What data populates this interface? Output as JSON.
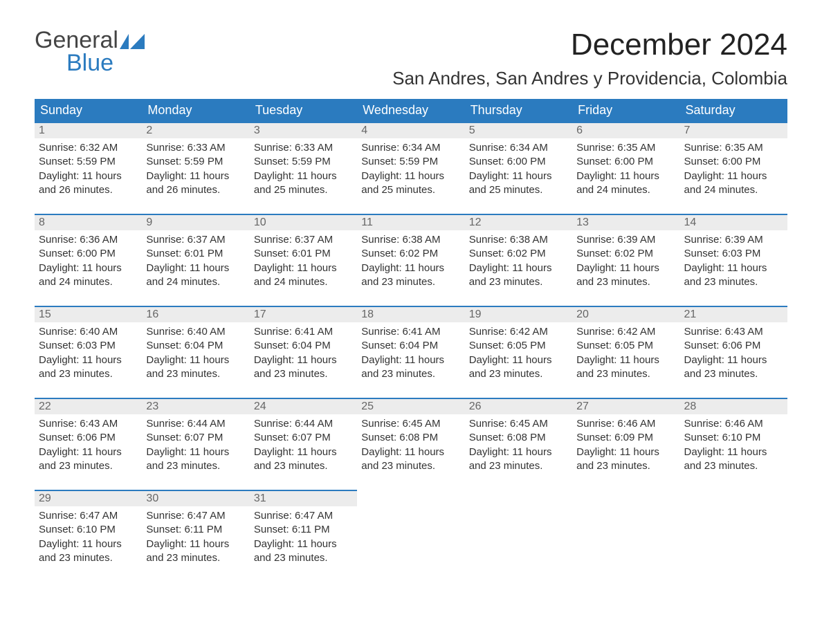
{
  "logo": {
    "text_general": "General",
    "text_blue": "Blue",
    "icon_color": "#2b7bbf"
  },
  "title": {
    "month": "December 2024",
    "location": "San Andres, San Andres y Providencia, Colombia"
  },
  "style": {
    "header_bg": "#2b7bbf",
    "header_text": "#ffffff",
    "daynum_bg": "#ececec",
    "daynum_border_top": "#2b7bbf",
    "body_text": "#333333",
    "daynum_text": "#666666",
    "font_family": "Arial, Helvetica, sans-serif",
    "month_fontsize": 44,
    "location_fontsize": 26,
    "dayhdr_fontsize": 18,
    "detail_fontsize": 15
  },
  "day_headers": [
    "Sunday",
    "Monday",
    "Tuesday",
    "Wednesday",
    "Thursday",
    "Friday",
    "Saturday"
  ],
  "weeks": [
    [
      {
        "day": "1",
        "sunrise": "Sunrise: 6:32 AM",
        "sunset": "Sunset: 5:59 PM",
        "daylight1": "Daylight: 11 hours",
        "daylight2": "and 26 minutes."
      },
      {
        "day": "2",
        "sunrise": "Sunrise: 6:33 AM",
        "sunset": "Sunset: 5:59 PM",
        "daylight1": "Daylight: 11 hours",
        "daylight2": "and 26 minutes."
      },
      {
        "day": "3",
        "sunrise": "Sunrise: 6:33 AM",
        "sunset": "Sunset: 5:59 PM",
        "daylight1": "Daylight: 11 hours",
        "daylight2": "and 25 minutes."
      },
      {
        "day": "4",
        "sunrise": "Sunrise: 6:34 AM",
        "sunset": "Sunset: 5:59 PM",
        "daylight1": "Daylight: 11 hours",
        "daylight2": "and 25 minutes."
      },
      {
        "day": "5",
        "sunrise": "Sunrise: 6:34 AM",
        "sunset": "Sunset: 6:00 PM",
        "daylight1": "Daylight: 11 hours",
        "daylight2": "and 25 minutes."
      },
      {
        "day": "6",
        "sunrise": "Sunrise: 6:35 AM",
        "sunset": "Sunset: 6:00 PM",
        "daylight1": "Daylight: 11 hours",
        "daylight2": "and 24 minutes."
      },
      {
        "day": "7",
        "sunrise": "Sunrise: 6:35 AM",
        "sunset": "Sunset: 6:00 PM",
        "daylight1": "Daylight: 11 hours",
        "daylight2": "and 24 minutes."
      }
    ],
    [
      {
        "day": "8",
        "sunrise": "Sunrise: 6:36 AM",
        "sunset": "Sunset: 6:00 PM",
        "daylight1": "Daylight: 11 hours",
        "daylight2": "and 24 minutes."
      },
      {
        "day": "9",
        "sunrise": "Sunrise: 6:37 AM",
        "sunset": "Sunset: 6:01 PM",
        "daylight1": "Daylight: 11 hours",
        "daylight2": "and 24 minutes."
      },
      {
        "day": "10",
        "sunrise": "Sunrise: 6:37 AM",
        "sunset": "Sunset: 6:01 PM",
        "daylight1": "Daylight: 11 hours",
        "daylight2": "and 24 minutes."
      },
      {
        "day": "11",
        "sunrise": "Sunrise: 6:38 AM",
        "sunset": "Sunset: 6:02 PM",
        "daylight1": "Daylight: 11 hours",
        "daylight2": "and 23 minutes."
      },
      {
        "day": "12",
        "sunrise": "Sunrise: 6:38 AM",
        "sunset": "Sunset: 6:02 PM",
        "daylight1": "Daylight: 11 hours",
        "daylight2": "and 23 minutes."
      },
      {
        "day": "13",
        "sunrise": "Sunrise: 6:39 AM",
        "sunset": "Sunset: 6:02 PM",
        "daylight1": "Daylight: 11 hours",
        "daylight2": "and 23 minutes."
      },
      {
        "day": "14",
        "sunrise": "Sunrise: 6:39 AM",
        "sunset": "Sunset: 6:03 PM",
        "daylight1": "Daylight: 11 hours",
        "daylight2": "and 23 minutes."
      }
    ],
    [
      {
        "day": "15",
        "sunrise": "Sunrise: 6:40 AM",
        "sunset": "Sunset: 6:03 PM",
        "daylight1": "Daylight: 11 hours",
        "daylight2": "and 23 minutes."
      },
      {
        "day": "16",
        "sunrise": "Sunrise: 6:40 AM",
        "sunset": "Sunset: 6:04 PM",
        "daylight1": "Daylight: 11 hours",
        "daylight2": "and 23 minutes."
      },
      {
        "day": "17",
        "sunrise": "Sunrise: 6:41 AM",
        "sunset": "Sunset: 6:04 PM",
        "daylight1": "Daylight: 11 hours",
        "daylight2": "and 23 minutes."
      },
      {
        "day": "18",
        "sunrise": "Sunrise: 6:41 AM",
        "sunset": "Sunset: 6:04 PM",
        "daylight1": "Daylight: 11 hours",
        "daylight2": "and 23 minutes."
      },
      {
        "day": "19",
        "sunrise": "Sunrise: 6:42 AM",
        "sunset": "Sunset: 6:05 PM",
        "daylight1": "Daylight: 11 hours",
        "daylight2": "and 23 minutes."
      },
      {
        "day": "20",
        "sunrise": "Sunrise: 6:42 AM",
        "sunset": "Sunset: 6:05 PM",
        "daylight1": "Daylight: 11 hours",
        "daylight2": "and 23 minutes."
      },
      {
        "day": "21",
        "sunrise": "Sunrise: 6:43 AM",
        "sunset": "Sunset: 6:06 PM",
        "daylight1": "Daylight: 11 hours",
        "daylight2": "and 23 minutes."
      }
    ],
    [
      {
        "day": "22",
        "sunrise": "Sunrise: 6:43 AM",
        "sunset": "Sunset: 6:06 PM",
        "daylight1": "Daylight: 11 hours",
        "daylight2": "and 23 minutes."
      },
      {
        "day": "23",
        "sunrise": "Sunrise: 6:44 AM",
        "sunset": "Sunset: 6:07 PM",
        "daylight1": "Daylight: 11 hours",
        "daylight2": "and 23 minutes."
      },
      {
        "day": "24",
        "sunrise": "Sunrise: 6:44 AM",
        "sunset": "Sunset: 6:07 PM",
        "daylight1": "Daylight: 11 hours",
        "daylight2": "and 23 minutes."
      },
      {
        "day": "25",
        "sunrise": "Sunrise: 6:45 AM",
        "sunset": "Sunset: 6:08 PM",
        "daylight1": "Daylight: 11 hours",
        "daylight2": "and 23 minutes."
      },
      {
        "day": "26",
        "sunrise": "Sunrise: 6:45 AM",
        "sunset": "Sunset: 6:08 PM",
        "daylight1": "Daylight: 11 hours",
        "daylight2": "and 23 minutes."
      },
      {
        "day": "27",
        "sunrise": "Sunrise: 6:46 AM",
        "sunset": "Sunset: 6:09 PM",
        "daylight1": "Daylight: 11 hours",
        "daylight2": "and 23 minutes."
      },
      {
        "day": "28",
        "sunrise": "Sunrise: 6:46 AM",
        "sunset": "Sunset: 6:10 PM",
        "daylight1": "Daylight: 11 hours",
        "daylight2": "and 23 minutes."
      }
    ],
    [
      {
        "day": "29",
        "sunrise": "Sunrise: 6:47 AM",
        "sunset": "Sunset: 6:10 PM",
        "daylight1": "Daylight: 11 hours",
        "daylight2": "and 23 minutes."
      },
      {
        "day": "30",
        "sunrise": "Sunrise: 6:47 AM",
        "sunset": "Sunset: 6:11 PM",
        "daylight1": "Daylight: 11 hours",
        "daylight2": "and 23 minutes."
      },
      {
        "day": "31",
        "sunrise": "Sunrise: 6:47 AM",
        "sunset": "Sunset: 6:11 PM",
        "daylight1": "Daylight: 11 hours",
        "daylight2": "and 23 minutes."
      },
      null,
      null,
      null,
      null
    ]
  ]
}
